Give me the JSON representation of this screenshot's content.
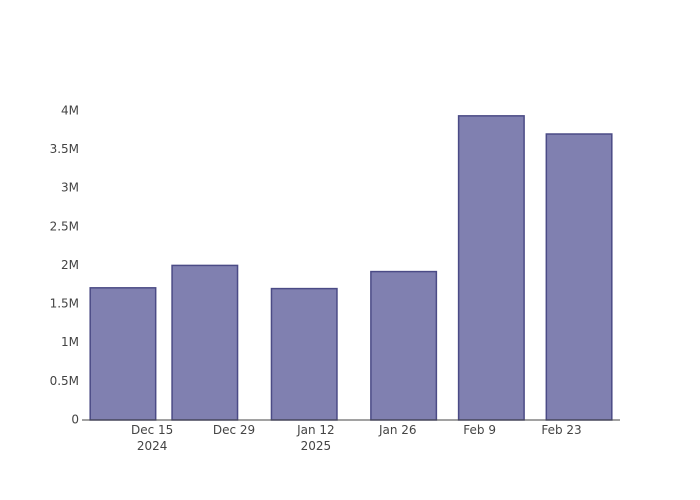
{
  "chart_data": {
    "type": "bar",
    "x": [
      "2024-12-10",
      "2024-12-24",
      "2025-01-10",
      "2025-01-27",
      "2025-02-11",
      "2025-02-26"
    ],
    "values": [
      1710000,
      2000000,
      1700000,
      1920000,
      3935000,
      3700000
    ],
    "color": "#8080b0",
    "line_color": "#4b4b86",
    "xlim": [
      "2024-12-03",
      "2025-03-05"
    ],
    "xticks": [
      {
        "value": "2024-12-15",
        "label": "Dec 15\n2024"
      },
      {
        "value": "2024-12-29",
        "label": "Dec 29"
      },
      {
        "value": "2025-01-12",
        "label": "Jan 12\n2025"
      },
      {
        "value": "2025-01-26",
        "label": "Jan 26"
      },
      {
        "value": "2025-02-09",
        "label": "Feb 9"
      },
      {
        "value": "2025-02-23",
        "label": "Feb 23"
      }
    ],
    "ylim": [
      0,
      4140000
    ],
    "yticks": [
      0,
      {
        "value": 500000,
        "label": "0.5M"
      },
      {
        "value": 1000000,
        "label": "1M"
      },
      {
        "value": 1500000,
        "label": "1.5M"
      },
      {
        "value": 2000000,
        "label": "2M"
      },
      {
        "value": 2500000,
        "label": "2.5M"
      },
      {
        "value": 3000000,
        "label": "3M"
      },
      {
        "value": 3500000,
        "label": "3.5M"
      },
      {
        "value": 4000000,
        "label": "4M"
      }
    ],
    "grid": true
  }
}
